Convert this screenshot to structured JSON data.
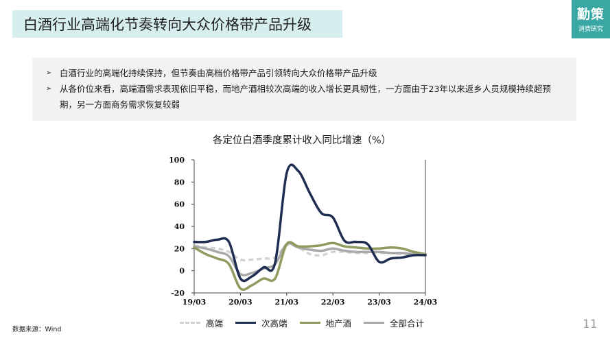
{
  "header": {
    "title": "白酒行业高端化节奏转向大众价格带产品升级",
    "logo_main": "勤策",
    "logo_sub": "消费研究"
  },
  "summary": {
    "bullets": [
      "白酒行业的高端化持续保持，但节奏由高档价格带产品引领转向大众价格带产品升级",
      "从各价位来看，高端酒需求表现依旧平稳，而地产酒相较次高端的收入增长更具韧性，一方面由于23年以来返乡人员规模持续超预期，另一方面商务需求恢复较弱"
    ]
  },
  "chart_data": {
    "type": "line",
    "title": "各定位白酒季度累计收入同比增速（%）",
    "x": [
      "19/03",
      "19/06",
      "19/09",
      "19/12",
      "20/03",
      "20/06",
      "20/09",
      "20/12",
      "21/03",
      "21/06",
      "21/09",
      "21/12",
      "22/03",
      "22/06",
      "22/09",
      "22/12",
      "23/03",
      "23/06",
      "23/09",
      "23/12",
      "24/03"
    ],
    "x_tick_labels": [
      "19/03",
      "20/03",
      "21/03",
      "22/03",
      "23/03",
      "24/03"
    ],
    "ylim": [
      -20,
      100
    ],
    "y_ticks": [
      -20,
      0,
      20,
      40,
      60,
      80,
      100
    ],
    "series": [
      {
        "name": "高端",
        "color": "#d2d2d2",
        "dashed": true,
        "values": [
          23,
          21,
          20,
          17,
          10,
          10,
          11,
          12,
          23,
          21,
          15,
          14,
          17,
          17,
          16,
          16,
          16,
          16,
          15,
          15,
          15
        ]
      },
      {
        "name": "次高端",
        "color": "#1f2d52",
        "dashed": false,
        "values": [
          26,
          26,
          28,
          26,
          -7,
          -5,
          3,
          7,
          88,
          90,
          70,
          52,
          48,
          27,
          26,
          24,
          8,
          11,
          12,
          14,
          14
        ]
      },
      {
        "name": "地产酒",
        "color": "#8e9b5e",
        "dashed": false,
        "values": [
          21,
          15,
          11,
          6,
          -16,
          -13,
          -7,
          -7,
          24,
          22,
          22,
          23,
          25,
          22,
          21,
          20,
          20,
          21,
          20,
          17,
          15
        ]
      },
      {
        "name": "全部合计",
        "color": "#a9a9a9",
        "dashed": false,
        "values": [
          22,
          20,
          17,
          13,
          -3,
          -2,
          2,
          6,
          24,
          21,
          19,
          18,
          20,
          18,
          17,
          17,
          17,
          16,
          16,
          15,
          15
        ]
      }
    ]
  },
  "footer": {
    "source": "数据来源：Wind",
    "page": "11"
  }
}
